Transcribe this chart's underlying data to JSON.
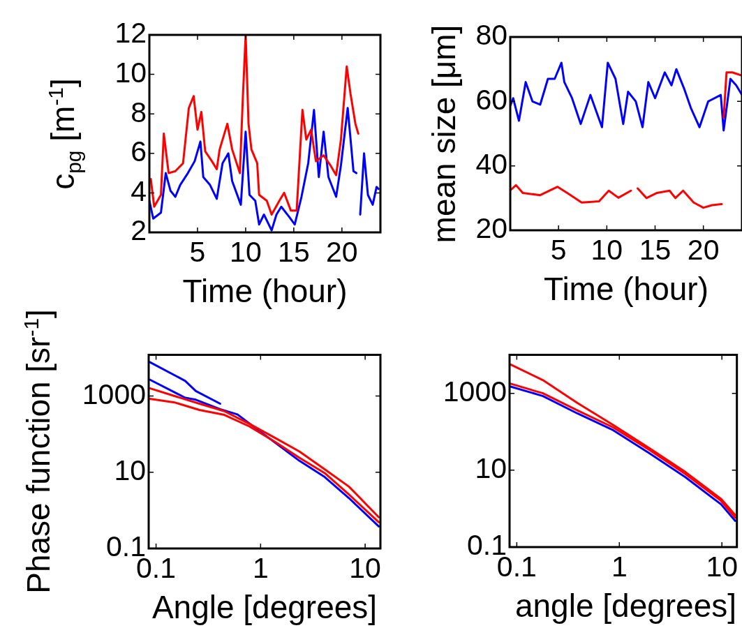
{
  "chart_data": [
    {
      "type": "line",
      "xlabel": "Time (hour)",
      "ylabel": "c$_{pg}$ [m$^{-1}$]",
      "xlim": [
        0,
        24
      ],
      "xticks": [
        5,
        10,
        15,
        20
      ],
      "ylim": [
        2,
        12
      ],
      "yticks": [
        2,
        4,
        6,
        8,
        10,
        12
      ],
      "series": [
        {
          "color": "#0000ff",
          "x": [
            0,
            0.4,
            1.2,
            1.7,
            2.2,
            2.7,
            3.2,
            4,
            4.7,
            5.3,
            5.6,
            6.3,
            7,
            7.6,
            8.2,
            8.6,
            9.5,
            10,
            10.4,
            11,
            11.4,
            11.9,
            12.7,
            13.2,
            13.7,
            14.5,
            15.1,
            15.8,
            16.5,
            17.1,
            17.6,
            18.1,
            18.6,
            19.4,
            19.9,
            20.6,
            21.2,
            21.5,
            21.7,
            21.9,
            22.3,
            22.7,
            23.2,
            23.6,
            23.8
          ],
          "values": [
            3.6,
            2.7,
            3,
            5,
            4.1,
            3.8,
            4.4,
            5,
            5.6,
            6.6,
            4.8,
            4.4,
            3.7,
            5.5,
            6.0,
            4.6,
            3.4,
            7.1,
            3.9,
            3.6,
            2.4,
            2.9,
            2.1,
            2.9,
            3.3,
            2.8,
            2.4,
            3.8,
            5.5,
            8.2,
            4.8,
            7.1,
            4.8,
            3.8,
            5.4,
            8.3,
            5.1,
            5.0,
            null,
            2.9,
            6.0,
            3.9,
            3.4,
            4.3,
            4.2
          ]
        },
        {
          "color": "#ff0000",
          "x": [
            0.15,
            0.5,
            1.2,
            1.5,
            2,
            2.7,
            3.5,
            4.1,
            4.6,
            5,
            5.4,
            5.8,
            6.5,
            7,
            7.3,
            8.1,
            8.6,
            9.4,
            9.7,
            10,
            10.3,
            10.6,
            11.2,
            11.4,
            12.2,
            12.7,
            13.5,
            14,
            14.7,
            15.3,
            15.9,
            16.3,
            16.8,
            17.3,
            18.1,
            18.8,
            19.4,
            19.9,
            20.5,
            20.9,
            21.4,
            21.7
          ],
          "values": [
            4.7,
            3.3,
            3.9,
            7.0,
            5,
            5.1,
            5.5,
            8.3,
            8.9,
            7.2,
            8.1,
            6.1,
            5.6,
            5.2,
            6.2,
            7.5,
            6.2,
            5,
            8.7,
            12,
            7.5,
            6.2,
            5.5,
            3.9,
            3.6,
            2.9,
            3.6,
            4,
            3.1,
            3.1,
            8.2,
            6.7,
            7.2,
            5.6,
            5.9,
            5.4,
            4.9,
            6.7,
            10.4,
            9,
            7.5,
            7.0
          ]
        }
      ]
    },
    {
      "type": "line",
      "xlabel": "Time (hour)",
      "ylabel": "mean size [μm]",
      "xlim": [
        0,
        24
      ],
      "xticks": [
        5,
        10,
        15,
        20
      ],
      "ylim": [
        20,
        80
      ],
      "yticks": [
        20,
        40,
        60,
        80
      ],
      "series": [
        {
          "color": "#0000ff",
          "x": [
            0,
            0.3,
            0.9,
            1.6,
            2.3,
            3.1,
            3.9,
            4.6,
            5.3,
            5.6,
            6.4,
            7.3,
            8.3,
            8.9,
            9.5,
            10.1,
            10.9,
            11.7,
            12.2,
            13,
            13.7,
            14.3,
            15,
            16,
            16.7,
            17.2,
            18,
            18.7,
            19.6,
            20.5,
            21.8,
            22.1,
            22.8,
            23.4,
            24
          ],
          "values": [
            58.6,
            61,
            54,
            66,
            60,
            59,
            67,
            67,
            72,
            66,
            61,
            53,
            62,
            57,
            52,
            72,
            67,
            53,
            63,
            60,
            52,
            66,
            61,
            69,
            65,
            70,
            64,
            58,
            52,
            60,
            62,
            51,
            67,
            65,
            62
          ]
        },
        {
          "color": "#ff0000",
          "x": [
            0,
            0.6,
            1.3,
            3.1,
            4.9,
            5.9,
            7.4,
            9.2,
            10.2,
            11.2,
            12.5,
            12.8,
            13.2,
            14.1,
            15.2,
            16.5,
            17.1,
            17.9,
            19,
            20,
            20.9,
            21.9,
            22,
            22.1,
            22.4,
            23,
            24
          ],
          "values": [
            32.4,
            34,
            31.6,
            30.9,
            33.5,
            31.6,
            28.6,
            29,
            32.3,
            30.1,
            32.3,
            null,
            33,
            30,
            31.6,
            32.3,
            30,
            32.3,
            28.6,
            27,
            27.8,
            28.1,
            null,
            55,
            69,
            69,
            68
          ]
        }
      ]
    },
    {
      "type": "line",
      "xlabel": "Angle [degrees]",
      "ylabel": "Phase function [sr$^{-1}$]",
      "log": "xy",
      "xlim": [
        0.085,
        14
      ],
      "xticks": [
        0.1,
        1,
        10
      ],
      "ylim": [
        0.1,
        12000
      ],
      "yticks": [
        0.1,
        10,
        1000
      ],
      "series": [
        {
          "color": "#0000ff",
          "x": [
            0.087,
            0.19,
            0.24,
            0.41
          ],
          "values": [
            7800,
            2500,
            1350,
            630
          ]
        },
        {
          "color": "#0000ff",
          "x": [
            0.087,
            0.19,
            0.24,
            0.41,
            0.6,
            0.98,
            2.35,
            4.1,
            7,
            13.5
          ],
          "values": [
            2700,
            900,
            800,
            450,
            330,
            120,
            20,
            7.5,
            2.1,
            0.38
          ]
        },
        {
          "color": "#ff0000",
          "x": [
            0.087,
            0.15,
            0.26,
            0.45,
            0.78,
            1.36,
            2.35,
            4.1,
            7,
            13.5
          ],
          "values": [
            1600,
            1000,
            630,
            400,
            186,
            81,
            35,
            12,
            4.2,
            0.66
          ]
        },
        {
          "color": "#ff0000",
          "x": [
            0.087,
            0.15,
            0.26,
            0.45,
            0.78,
            1.36,
            2.35,
            4.1,
            7,
            13.5
          ],
          "values": [
            850,
            680,
            430,
            320,
            160,
            64,
            24,
            9.5,
            2.6,
            0.49
          ]
        }
      ]
    },
    {
      "type": "line",
      "xlabel": "angle [degrees]",
      "log": "xy",
      "xlim": [
        0.085,
        14
      ],
      "xticks": [
        0.1,
        1,
        10
      ],
      "ylim": [
        0.1,
        10000
      ],
      "yticks": [
        0.1,
        10,
        1000
      ],
      "series": [
        {
          "color": "#0000ff",
          "x": [
            0.087,
            0.18,
            0.39,
            0.87,
            1.95,
            4.4,
            9.8,
            13.5
          ],
          "values": [
            1500,
            850,
            300,
            110,
            28,
            6.6,
            1.3,
            0.48
          ]
        },
        {
          "color": "#ff0000",
          "x": [
            0.087,
            0.18,
            0.39,
            0.87,
            1.95,
            4.4,
            9.8,
            13.5
          ],
          "values": [
            5600,
            2200,
            560,
            150,
            38,
            9,
            1.8,
            0.68
          ]
        },
        {
          "color": "#ff0000",
          "x": [
            0.087,
            0.18,
            0.39,
            0.87,
            1.95,
            4.4,
            9.8,
            13.5
          ],
          "values": [
            1780,
            1000,
            360,
            130,
            34,
            8,
            1.6,
            0.58
          ]
        }
      ]
    }
  ]
}
